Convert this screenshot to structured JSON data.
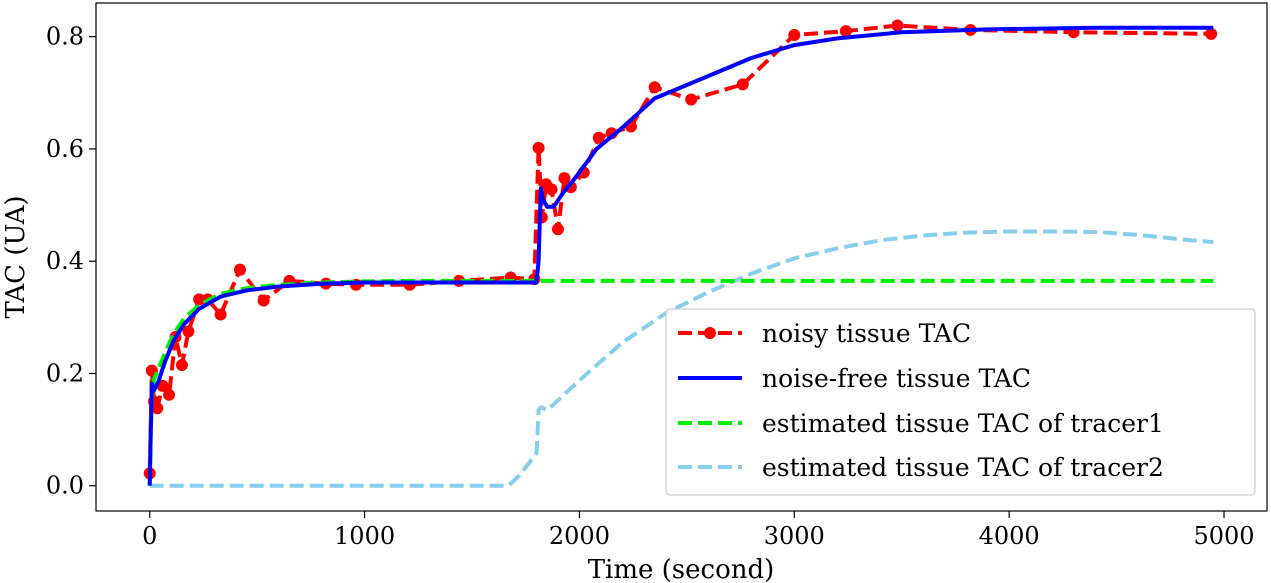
{
  "chart_data": {
    "type": "line",
    "title": "",
    "xlabel": "Time (second)",
    "ylabel": "TAC (UA)",
    "xlim": [
      -250,
      5200
    ],
    "ylim": [
      -0.045,
      0.86
    ],
    "xticks": [
      0,
      1000,
      2000,
      3000,
      4000,
      5000
    ],
    "xtick_labels": [
      "0",
      "1000",
      "2000",
      "3000",
      "4000",
      "5000"
    ],
    "yticks": [
      0.0,
      0.2,
      0.4,
      0.6,
      0.8
    ],
    "ytick_labels": [
      "0.0",
      "0.2",
      "0.4",
      "0.6",
      "0.8"
    ],
    "grid": false,
    "legend_position": "lower right",
    "series": [
      {
        "name": "noisy tissue TAC",
        "color": "#ff0000",
        "style": "dashed-markers",
        "x": [
          0,
          10,
          20,
          35,
          60,
          90,
          120,
          150,
          180,
          230,
          270,
          330,
          420,
          530,
          650,
          820,
          960,
          1210,
          1440,
          1680,
          1790,
          1810,
          1825,
          1845,
          1870,
          1900,
          1930,
          1960,
          2020,
          2090,
          2150,
          2240,
          2350,
          2520,
          2760,
          3000,
          3240,
          3480,
          3820,
          4300,
          4940
        ],
        "y": [
          0.022,
          0.205,
          0.15,
          0.138,
          0.178,
          0.162,
          0.265,
          0.215,
          0.275,
          0.332,
          0.332,
          0.305,
          0.385,
          0.33,
          0.365,
          0.36,
          0.358,
          0.358,
          0.365,
          0.371,
          0.368,
          0.602,
          0.478,
          0.537,
          0.528,
          0.457,
          0.548,
          0.532,
          0.558,
          0.62,
          0.628,
          0.64,
          0.71,
          0.688,
          0.715,
          0.803,
          0.81,
          0.82,
          0.812,
          0.808,
          0.805
        ]
      },
      {
        "name": "noise-free tissue TAC",
        "color": "#0000ff",
        "style": "solid",
        "x": [
          0,
          5,
          10,
          20,
          40,
          70,
          110,
          160,
          230,
          330,
          450,
          600,
          800,
          1000,
          1200,
          1400,
          1600,
          1800,
          1810,
          1820,
          1830,
          1850,
          1880,
          1920,
          1980,
          2080,
          2200,
          2350,
          2550,
          2800,
          3000,
          3200,
          3500,
          3900,
          4400,
          4950
        ],
        "y": [
          0.0,
          0.1,
          0.182,
          0.17,
          0.185,
          0.22,
          0.258,
          0.288,
          0.315,
          0.337,
          0.348,
          0.355,
          0.36,
          0.362,
          0.362,
          0.362,
          0.362,
          0.362,
          0.4,
          0.53,
          0.51,
          0.497,
          0.497,
          0.52,
          0.548,
          0.6,
          0.638,
          0.69,
          0.722,
          0.762,
          0.785,
          0.797,
          0.808,
          0.813,
          0.816,
          0.816
        ]
      },
      {
        "name": "estimated tissue TAC of tracer1",
        "color": "#00ee00",
        "style": "dashed",
        "x": [
          0,
          5,
          10,
          20,
          40,
          70,
          110,
          160,
          230,
          330,
          450,
          600,
          800,
          1000,
          1200,
          1400,
          1600,
          1800,
          2200,
          3000,
          4000,
          4950
        ],
        "y": [
          0.0,
          0.1,
          0.16,
          0.19,
          0.208,
          0.236,
          0.27,
          0.298,
          0.322,
          0.342,
          0.352,
          0.358,
          0.362,
          0.364,
          0.365,
          0.365,
          0.365,
          0.365,
          0.365,
          0.365,
          0.365,
          0.365
        ]
      },
      {
        "name": "estimated tissue TAC of tracer2",
        "color": "#87ceeb",
        "style": "dashed",
        "x": [
          0,
          1000,
          1670,
          1720,
          1760,
          1800,
          1810,
          1820,
          1850,
          1880,
          1950,
          2050,
          2200,
          2400,
          2600,
          2800,
          3000,
          3200,
          3400,
          3600,
          3800,
          4000,
          4200,
          4400,
          4600,
          4800,
          4950
        ],
        "y": [
          0.0,
          0.0,
          0.0,
          0.018,
          0.038,
          0.058,
          0.135,
          0.14,
          0.135,
          0.145,
          0.17,
          0.205,
          0.255,
          0.307,
          0.345,
          0.378,
          0.405,
          0.423,
          0.437,
          0.446,
          0.451,
          0.453,
          0.453,
          0.452,
          0.447,
          0.439,
          0.434
        ]
      }
    ]
  }
}
